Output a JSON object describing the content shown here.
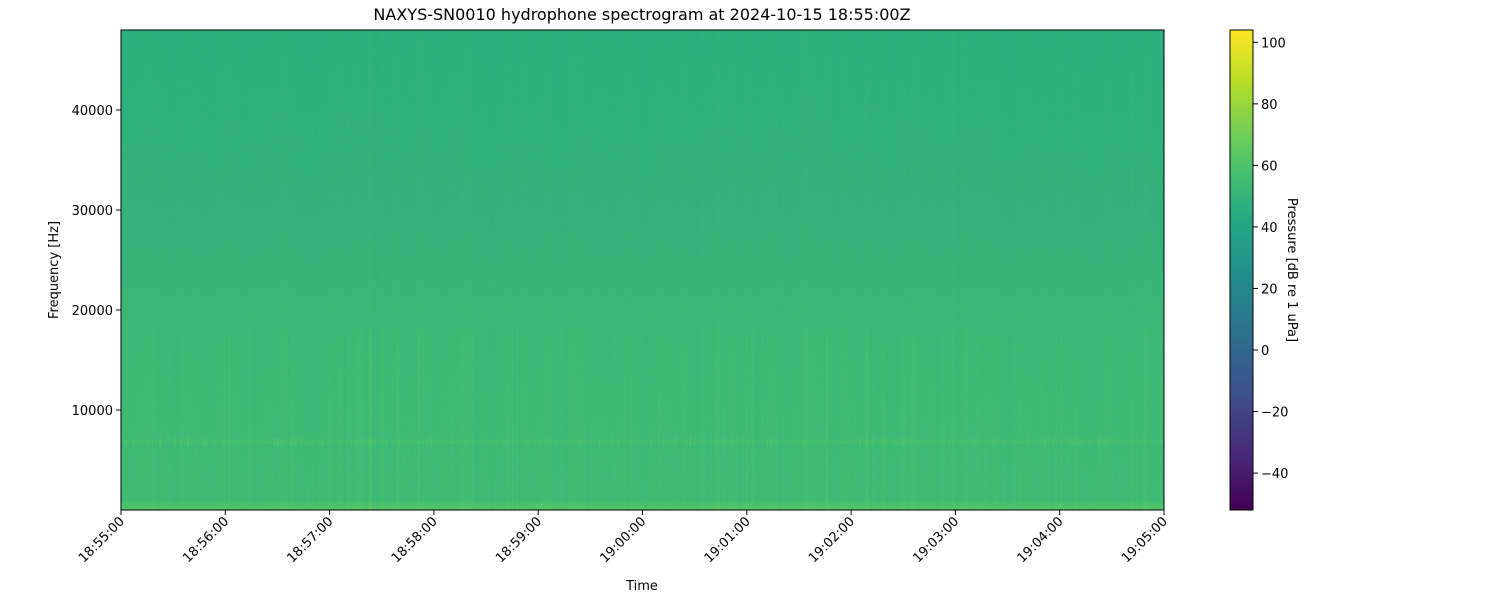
{
  "chart_data": {
    "type": "heatmap",
    "title": "NAXYS-SN0010 hydrophone spectrogram at 2024-10-15 18:55:00Z",
    "xlabel": "Time",
    "ylabel": "Frequency [Hz]",
    "colorbar_label": "Pressure [dB re 1 uPa]",
    "colormap": "viridis",
    "x_range": [
      "18:55:00",
      "19:05:00"
    ],
    "x_ticks": [
      "18:55:00",
      "18:56:00",
      "18:57:00",
      "18:58:00",
      "18:59:00",
      "19:00:00",
      "19:01:00",
      "19:02:00",
      "19:03:00",
      "19:04:00",
      "19:05:00"
    ],
    "ylim": [
      0,
      48000
    ],
    "y_ticks": [
      10000,
      20000,
      30000,
      40000
    ],
    "y_tick_labels": [
      "10000",
      "20000",
      "30000",
      "40000"
    ],
    "clim": [
      -52,
      104
    ],
    "colorbar_ticks": [
      -40,
      -20,
      0,
      20,
      40,
      60,
      80,
      100
    ],
    "colorbar_tick_labels": [
      "−40",
      "−20",
      "0",
      "20",
      "40",
      "60",
      "80",
      "100"
    ],
    "frequency_profile_db": [
      {
        "freq_hz": 0,
        "db": 63
      },
      {
        "freq_hz": 500,
        "db": 60
      },
      {
        "freq_hz": 1000,
        "db": 55
      },
      {
        "freq_hz": 6500,
        "db": 54
      },
      {
        "freq_hz": 6800,
        "db": 57
      },
      {
        "freq_hz": 7200,
        "db": 54
      },
      {
        "freq_hz": 18000,
        "db": 53
      },
      {
        "freq_hz": 25000,
        "db": 50
      },
      {
        "freq_hz": 35000,
        "db": 48.5
      },
      {
        "freq_hz": 48000,
        "db": 47.5
      }
    ],
    "grid": false
  }
}
